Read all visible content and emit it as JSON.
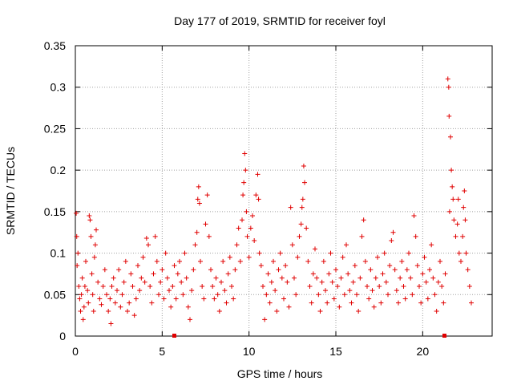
{
  "chart_data": {
    "type": "scatter",
    "title": "Day 177 of 2019, SRMTID for receiver foyl",
    "xlabel": "GPS time / hours",
    "ylabel": "SRMTID / TECUs",
    "xlim": [
      0,
      24
    ],
    "ylim": [
      0,
      0.35
    ],
    "xticks": [
      0,
      5,
      10,
      15,
      20
    ],
    "xtick_labels": [
      "0",
      "5",
      "10",
      "15",
      "20"
    ],
    "yticks": [
      0,
      0.05,
      0.1,
      0.15,
      0.2,
      0.25,
      0.3,
      0.35
    ],
    "ytick_labels": [
      "0",
      "0.05",
      "0.1",
      "0.15",
      "0.2",
      "0.25",
      "0.3",
      "0.35"
    ],
    "grid": true,
    "marker": "plus",
    "color": "#e00000",
    "series": [
      {
        "name": "SRMTID",
        "points": [
          [
            0.05,
            0.148
          ],
          [
            0.08,
            0.12
          ],
          [
            0.1,
            0.085
          ],
          [
            0.15,
            0.1
          ],
          [
            0.2,
            0.06
          ],
          [
            0.25,
            0.045
          ],
          [
            0.3,
            0.03
          ],
          [
            0.35,
            0.05
          ],
          [
            0.4,
            0.07
          ],
          [
            0.45,
            0.02
          ],
          [
            0.5,
            0.035
          ],
          [
            0.55,
            0.06
          ],
          [
            0.6,
            0.09
          ],
          [
            0.7,
            0.055
          ],
          [
            0.75,
            0.04
          ],
          [
            0.8,
            0.145
          ],
          [
            0.85,
            0.14
          ],
          [
            0.9,
            0.12
          ],
          [
            0.95,
            0.075
          ],
          [
            1.0,
            0.05
          ],
          [
            1.05,
            0.03
          ],
          [
            1.1,
            0.095
          ],
          [
            1.15,
            0.11
          ],
          [
            1.2,
            0.128
          ],
          [
            1.3,
            0.065
          ],
          [
            1.4,
            0.045
          ],
          [
            1.5,
            0.038
          ],
          [
            1.6,
            0.06
          ],
          [
            1.7,
            0.08
          ],
          [
            1.8,
            0.05
          ],
          [
            1.9,
            0.03
          ],
          [
            2.0,
            0.045
          ],
          [
            2.05,
            0.015
          ],
          [
            2.1,
            0.06
          ],
          [
            2.2,
            0.07
          ],
          [
            2.3,
            0.04
          ],
          [
            2.4,
            0.055
          ],
          [
            2.5,
            0.08
          ],
          [
            2.6,
            0.035
          ],
          [
            2.7,
            0.05
          ],
          [
            2.8,
            0.065
          ],
          [
            2.9,
            0.09
          ],
          [
            3.0,
            0.03
          ],
          [
            3.1,
            0.04
          ],
          [
            3.2,
            0.075
          ],
          [
            3.3,
            0.06
          ],
          [
            3.4,
            0.025
          ],
          [
            3.5,
            0.045
          ],
          [
            3.6,
            0.085
          ],
          [
            3.7,
            0.055
          ],
          [
            3.8,
            0.07
          ],
          [
            3.9,
            0.095
          ],
          [
            4.0,
            0.065
          ],
          [
            4.1,
            0.118
          ],
          [
            4.2,
            0.11
          ],
          [
            4.3,
            0.06
          ],
          [
            4.4,
            0.04
          ],
          [
            4.5,
            0.075
          ],
          [
            4.6,
            0.12
          ],
          [
            4.7,
            0.09
          ],
          [
            4.8,
            0.05
          ],
          [
            4.9,
            0.065
          ],
          [
            5.0,
            0.08
          ],
          [
            5.1,
            0.045
          ],
          [
            5.2,
            0.1
          ],
          [
            5.3,
            0.07
          ],
          [
            5.4,
            0.055
          ],
          [
            5.5,
            0.035
          ],
          [
            5.6,
            0.06
          ],
          [
            5.7,
            0.085
          ],
          [
            5.8,
            0.045
          ],
          [
            5.9,
            0.075
          ],
          [
            6.0,
            0.09
          ],
          [
            6.1,
            0.065
          ],
          [
            6.2,
            0.05
          ],
          [
            6.3,
            0.1
          ],
          [
            6.4,
            0.07
          ],
          [
            6.5,
            0.035
          ],
          [
            6.6,
            0.02
          ],
          [
            6.7,
            0.055
          ],
          [
            6.8,
            0.08
          ],
          [
            6.9,
            0.11
          ],
          [
            7.0,
            0.125
          ],
          [
            7.05,
            0.165
          ],
          [
            7.1,
            0.18
          ],
          [
            7.15,
            0.16
          ],
          [
            7.2,
            0.09
          ],
          [
            7.3,
            0.06
          ],
          [
            7.4,
            0.045
          ],
          [
            7.5,
            0.135
          ],
          [
            7.6,
            0.17
          ],
          [
            7.7,
            0.12
          ],
          [
            7.8,
            0.08
          ],
          [
            7.9,
            0.06
          ],
          [
            8.0,
            0.045
          ],
          [
            8.1,
            0.07
          ],
          [
            8.2,
            0.05
          ],
          [
            8.3,
            0.03
          ],
          [
            8.4,
            0.065
          ],
          [
            8.5,
            0.09
          ],
          [
            8.6,
            0.055
          ],
          [
            8.7,
            0.04
          ],
          [
            8.8,
            0.075
          ],
          [
            8.9,
            0.095
          ],
          [
            9.0,
            0.06
          ],
          [
            9.1,
            0.045
          ],
          [
            9.2,
            0.08
          ],
          [
            9.3,
            0.11
          ],
          [
            9.4,
            0.13
          ],
          [
            9.5,
            0.09
          ],
          [
            9.6,
            0.14
          ],
          [
            9.65,
            0.17
          ],
          [
            9.7,
            0.185
          ],
          [
            9.75,
            0.22
          ],
          [
            9.8,
            0.2
          ],
          [
            9.85,
            0.15
          ],
          [
            9.9,
            0.12
          ],
          [
            10.0,
            0.095
          ],
          [
            10.1,
            0.13
          ],
          [
            10.2,
            0.145
          ],
          [
            10.3,
            0.115
          ],
          [
            10.4,
            0.17
          ],
          [
            10.5,
            0.195
          ],
          [
            10.55,
            0.165
          ],
          [
            10.6,
            0.1
          ],
          [
            10.7,
            0.085
          ],
          [
            10.8,
            0.06
          ],
          [
            10.9,
            0.02
          ],
          [
            11.0,
            0.05
          ],
          [
            11.1,
            0.075
          ],
          [
            11.2,
            0.04
          ],
          [
            11.3,
            0.065
          ],
          [
            11.4,
            0.09
          ],
          [
            11.5,
            0.055
          ],
          [
            11.6,
            0.03
          ],
          [
            11.7,
            0.08
          ],
          [
            11.8,
            0.1
          ],
          [
            11.9,
            0.07
          ],
          [
            12.0,
            0.045
          ],
          [
            12.1,
            0.085
          ],
          [
            12.2,
            0.065
          ],
          [
            12.3,
            0.035
          ],
          [
            12.4,
            0.155
          ],
          [
            12.5,
            0.11
          ],
          [
            12.6,
            0.07
          ],
          [
            12.7,
            0.05
          ],
          [
            12.8,
            0.095
          ],
          [
            12.9,
            0.12
          ],
          [
            13.0,
            0.135
          ],
          [
            13.05,
            0.155
          ],
          [
            13.1,
            0.165
          ],
          [
            13.15,
            0.205
          ],
          [
            13.2,
            0.185
          ],
          [
            13.3,
            0.13
          ],
          [
            13.4,
            0.09
          ],
          [
            13.5,
            0.06
          ],
          [
            13.6,
            0.04
          ],
          [
            13.7,
            0.075
          ],
          [
            13.8,
            0.105
          ],
          [
            13.9,
            0.07
          ],
          [
            14.0,
            0.05
          ],
          [
            14.1,
            0.03
          ],
          [
            14.2,
            0.065
          ],
          [
            14.3,
            0.09
          ],
          [
            14.4,
            0.055
          ],
          [
            14.5,
            0.04
          ],
          [
            14.6,
            0.075
          ],
          [
            14.7,
            0.1
          ],
          [
            14.8,
            0.065
          ],
          [
            14.9,
            0.045
          ],
          [
            15.0,
            0.08
          ],
          [
            15.1,
            0.06
          ],
          [
            15.2,
            0.035
          ],
          [
            15.3,
            0.07
          ],
          [
            15.4,
            0.095
          ],
          [
            15.5,
            0.05
          ],
          [
            15.6,
            0.11
          ],
          [
            15.7,
            0.075
          ],
          [
            15.8,
            0.055
          ],
          [
            15.9,
            0.04
          ],
          [
            16.0,
            0.065
          ],
          [
            16.1,
            0.085
          ],
          [
            16.2,
            0.05
          ],
          [
            16.3,
            0.03
          ],
          [
            16.4,
            0.07
          ],
          [
            16.5,
            0.12
          ],
          [
            16.6,
            0.14
          ],
          [
            16.7,
            0.09
          ],
          [
            16.8,
            0.06
          ],
          [
            16.9,
            0.045
          ],
          [
            17.0,
            0.08
          ],
          [
            17.1,
            0.055
          ],
          [
            17.2,
            0.035
          ],
          [
            17.3,
            0.07
          ],
          [
            17.4,
            0.095
          ],
          [
            17.5,
            0.06
          ],
          [
            17.6,
            0.04
          ],
          [
            17.7,
            0.075
          ],
          [
            17.8,
            0.1
          ],
          [
            17.9,
            0.065
          ],
          [
            18.0,
            0.05
          ],
          [
            18.1,
            0.085
          ],
          [
            18.2,
            0.115
          ],
          [
            18.3,
            0.125
          ],
          [
            18.4,
            0.08
          ],
          [
            18.5,
            0.055
          ],
          [
            18.6,
            0.04
          ],
          [
            18.7,
            0.07
          ],
          [
            18.8,
            0.09
          ],
          [
            18.9,
            0.06
          ],
          [
            19.0,
            0.045
          ],
          [
            19.1,
            0.08
          ],
          [
            19.2,
            0.1
          ],
          [
            19.3,
            0.07
          ],
          [
            19.4,
            0.05
          ],
          [
            19.5,
            0.145
          ],
          [
            19.6,
            0.12
          ],
          [
            19.7,
            0.085
          ],
          [
            19.8,
            0.06
          ],
          [
            19.9,
            0.04
          ],
          [
            20.0,
            0.075
          ],
          [
            20.1,
            0.095
          ],
          [
            20.2,
            0.065
          ],
          [
            20.3,
            0.045
          ],
          [
            20.4,
            0.08
          ],
          [
            20.5,
            0.11
          ],
          [
            20.6,
            0.07
          ],
          [
            20.7,
            0.05
          ],
          [
            20.8,
            0.03
          ],
          [
            20.9,
            0.065
          ],
          [
            21.0,
            0.09
          ],
          [
            21.1,
            0.06
          ],
          [
            21.2,
            0.04
          ],
          [
            21.3,
            0.075
          ],
          [
            21.45,
            0.31
          ],
          [
            21.5,
            0.3
          ],
          [
            21.52,
            0.265
          ],
          [
            21.55,
            0.15
          ],
          [
            21.6,
            0.24
          ],
          [
            21.65,
            0.2
          ],
          [
            21.7,
            0.18
          ],
          [
            21.75,
            0.165
          ],
          [
            21.8,
            0.14
          ],
          [
            21.9,
            0.12
          ],
          [
            22.0,
            0.135
          ],
          [
            22.05,
            0.165
          ],
          [
            22.1,
            0.1
          ],
          [
            22.2,
            0.09
          ],
          [
            22.3,
            0.12
          ],
          [
            22.35,
            0.155
          ],
          [
            22.4,
            0.175
          ],
          [
            22.45,
            0.14
          ],
          [
            22.5,
            0.1
          ],
          [
            22.6,
            0.08
          ],
          [
            22.7,
            0.06
          ],
          [
            22.8,
            0.04
          ]
        ]
      }
    ]
  }
}
